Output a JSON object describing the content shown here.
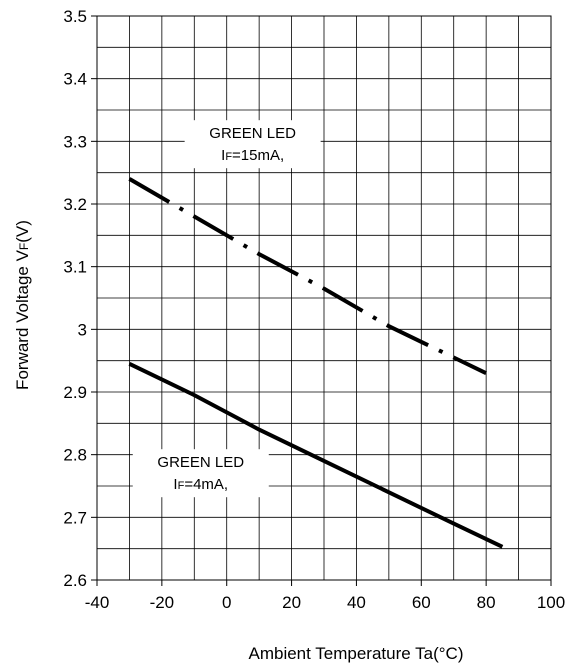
{
  "chart_data": {
    "type": "line",
    "xlabel": "Ambient Temperature Ta(°C)",
    "ylabel_main": "Forward Voltage V",
    "ylabel_sub": "F",
    "ylabel_tail": "(V)",
    "xlim": [
      -40,
      100
    ],
    "ylim": [
      2.6,
      3.5
    ],
    "x_ticks": [
      -40,
      -20,
      0,
      20,
      40,
      60,
      80,
      100
    ],
    "x_tick_labels": [
      "-40",
      "-20",
      "0",
      "20",
      "40",
      "60",
      "80",
      "100"
    ],
    "y_ticks": [
      2.6,
      2.7,
      2.8,
      2.9,
      3.0,
      3.1,
      3.2,
      3.3,
      3.4,
      3.5
    ],
    "y_tick_labels": [
      "2.6",
      "2.7",
      "2.8",
      "2.9",
      "3",
      "3.1",
      "3.2",
      "3.3",
      "3.4",
      "3.5"
    ],
    "grid": true,
    "series": [
      {
        "line_style": "dash-dot",
        "color": "#000000",
        "points": [
          [
            -30,
            3.24
          ],
          [
            -10,
            3.18
          ],
          [
            10,
            3.12
          ],
          [
            30,
            3.065
          ],
          [
            50,
            3.005
          ],
          [
            70,
            2.955
          ],
          [
            80,
            2.93
          ]
        ]
      },
      {
        "line_style": "solid",
        "color": "#000000",
        "points": [
          [
            -30,
            2.945
          ],
          [
            -10,
            2.895
          ],
          [
            10,
            2.84
          ],
          [
            30,
            2.79
          ],
          [
            50,
            2.74
          ],
          [
            70,
            2.69
          ],
          [
            85,
            2.653
          ]
        ]
      }
    ],
    "annotations": [
      {
        "line1": "GREEN LED",
        "line2_main": "I",
        "line2_sub": "F",
        "line2_tail": "=15mA,",
        "x": 8,
        "y": 3.305
      },
      {
        "line1": "GREEN LED",
        "line2_main": "I",
        "line2_sub": "F",
        "line2_tail": "=4mA,",
        "x": -8,
        "y": 2.78
      }
    ]
  }
}
